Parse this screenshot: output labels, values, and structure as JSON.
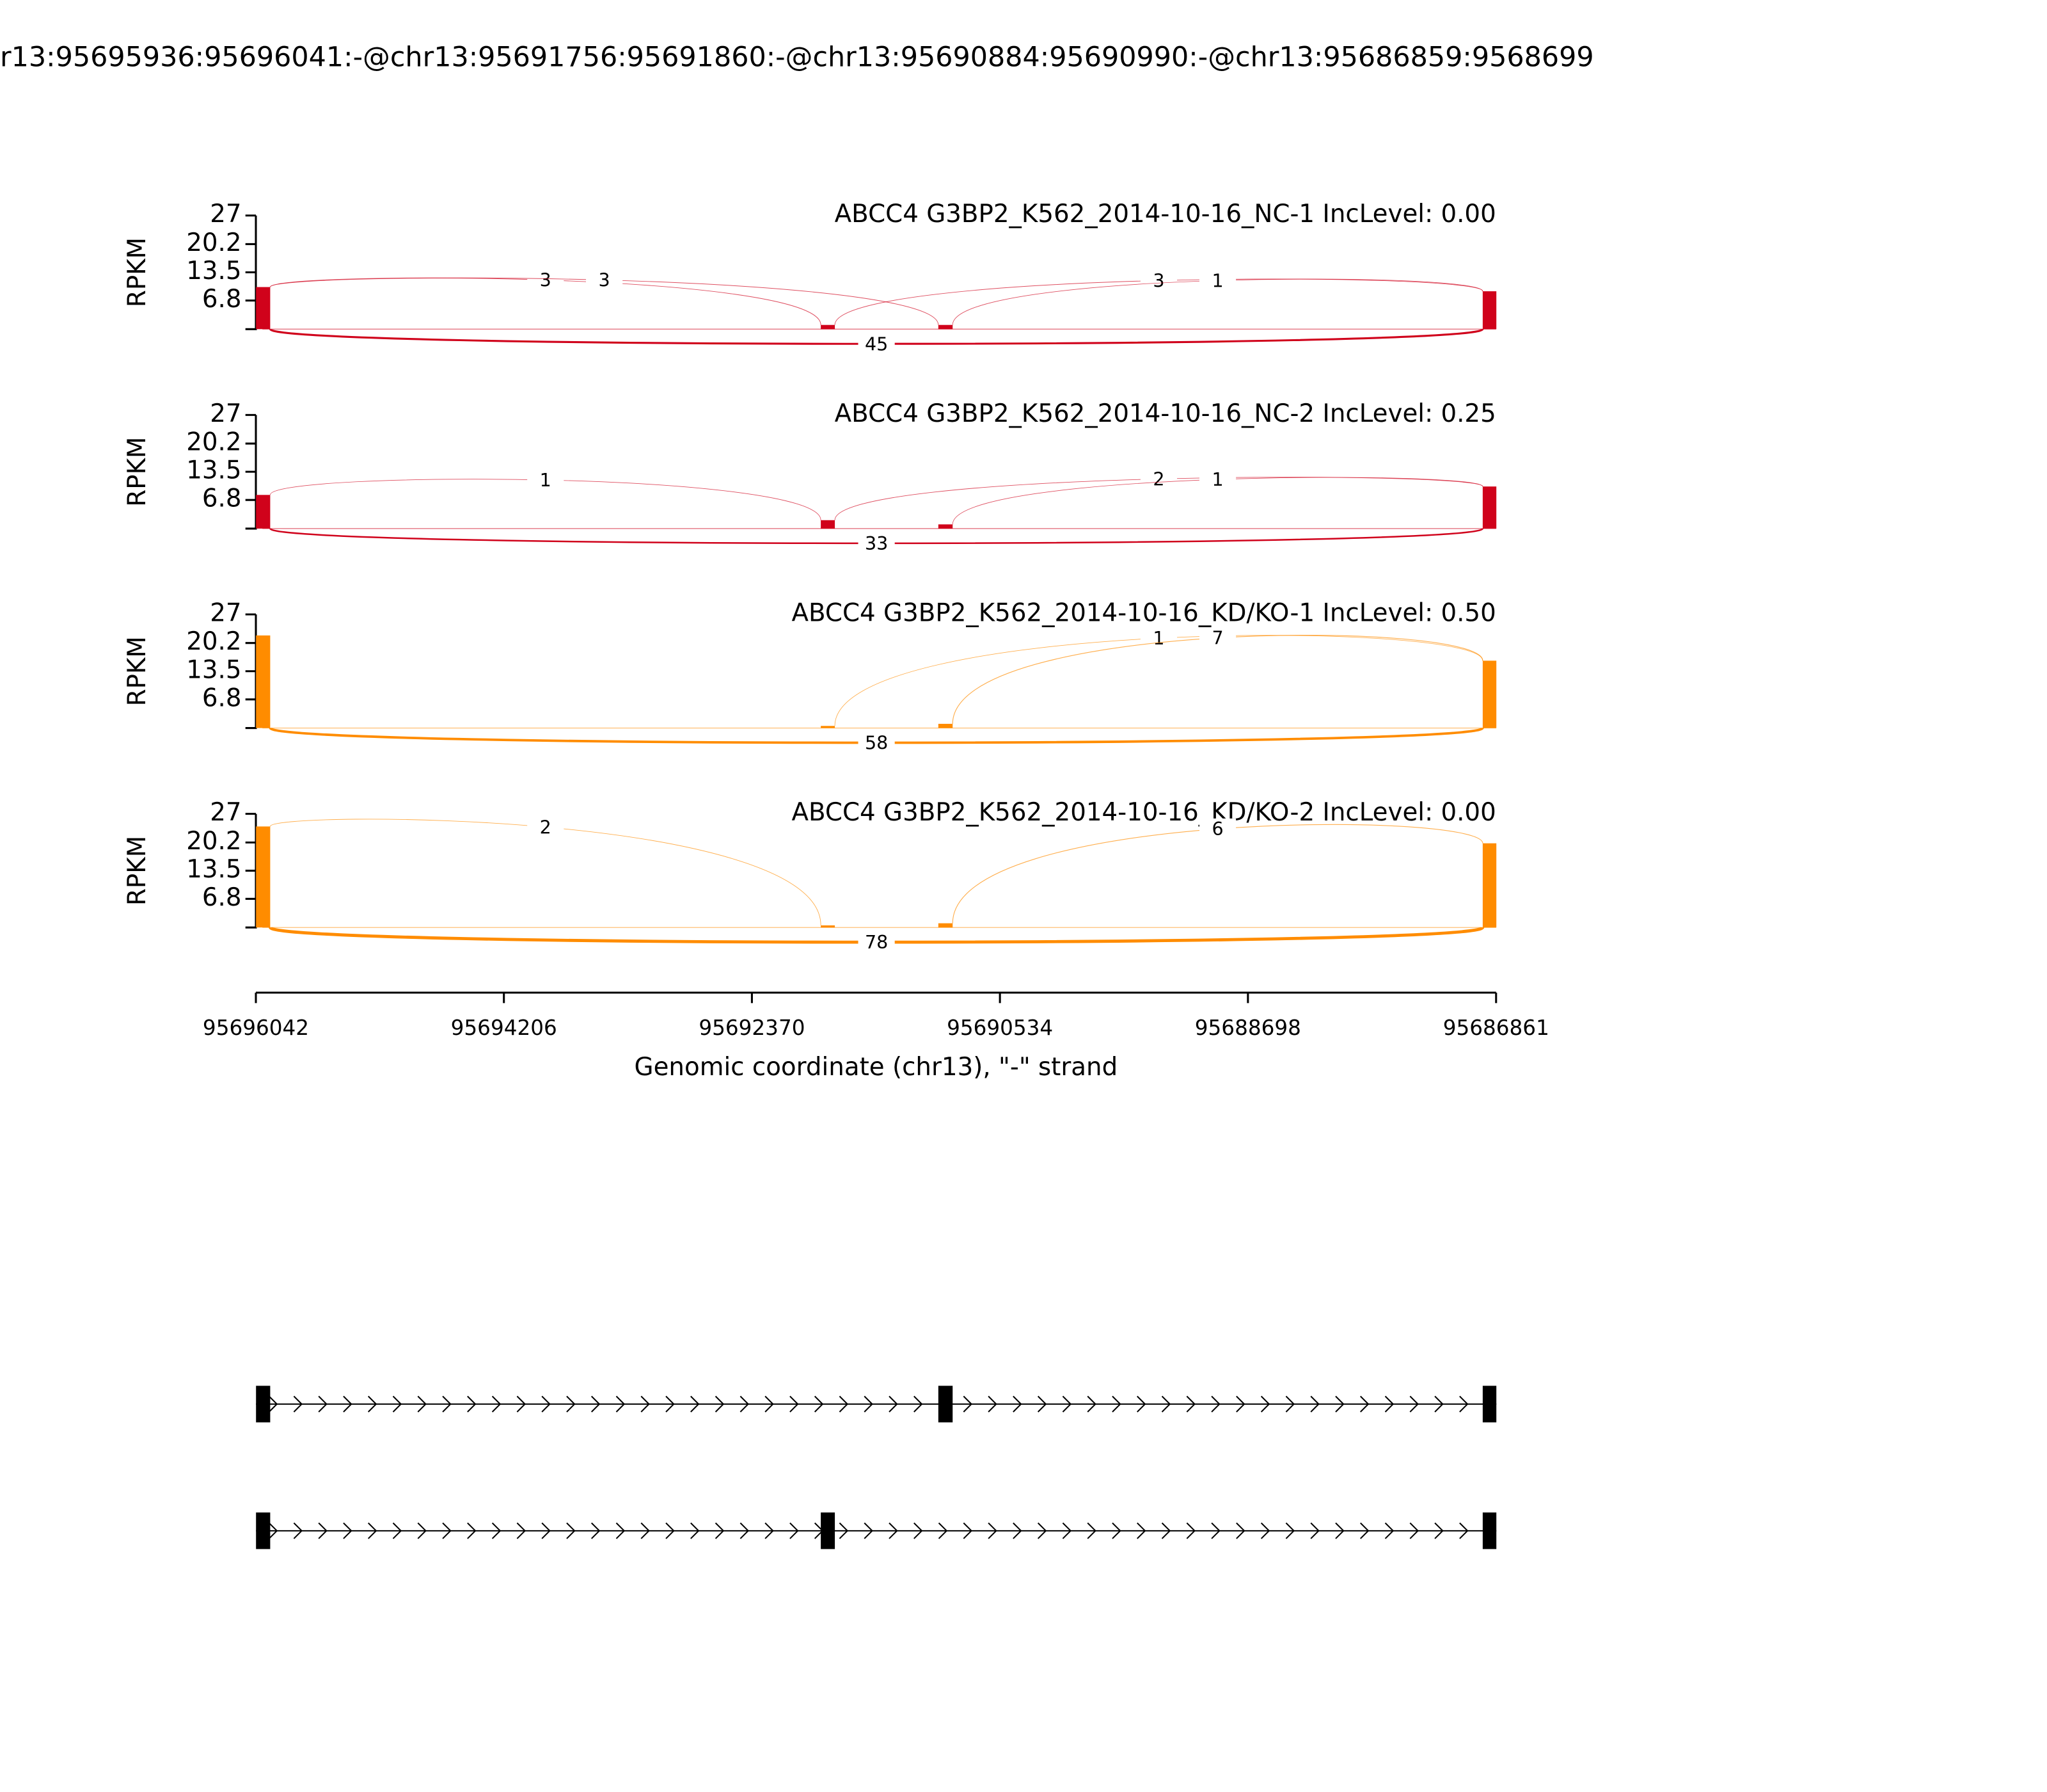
{
  "chart_data": {
    "type": "sashimi",
    "title": "r13:95695936:95696041:-@chr13:95691756:95691860:-@chr13:95690884:95690990:-@chr13:95686859:9568699",
    "xlabel": "Genomic coordinate (chr13), \"-\" strand",
    "ylabel": "RPKM",
    "xlim": [
      95696042,
      95686861
    ],
    "xticks": [
      95696042,
      95694206,
      95692370,
      95690534,
      95688698,
      95686861
    ],
    "ylim": [
      0,
      27
    ],
    "yticks": [
      6.8,
      13.5,
      20.2,
      27
    ],
    "exons": [
      [
        95696041,
        95695936
      ],
      [
        95691860,
        95691756
      ],
      [
        95690990,
        95690884
      ],
      [
        95686960,
        95686859
      ]
    ],
    "panels": [
      {
        "title": "ABCC4 G3BP2_K562_2014-10-16_NC-1 IncLevel: 0.00",
        "color": "#d0021b",
        "coverage": [
          10,
          1,
          1,
          9
        ],
        "junctions": [
          {
            "start": 95695936,
            "end": 95691860,
            "value": 3
          },
          {
            "start": 95695936,
            "end": 95690990,
            "value": 3
          },
          {
            "start": 95691756,
            "end": 95686960,
            "value": 3
          },
          {
            "start": 95690884,
            "end": 95686960,
            "value": 1
          },
          {
            "start": 95695936,
            "end": 95686960,
            "value": 45
          }
        ]
      },
      {
        "title": "ABCC4 G3BP2_K562_2014-10-16_NC-2 IncLevel: 0.25",
        "color": "#d0021b",
        "coverage": [
          8,
          2,
          1,
          10
        ],
        "junctions": [
          {
            "start": 95695936,
            "end": 95691860,
            "value": 1
          },
          {
            "start": 95691756,
            "end": 95686960,
            "value": 2
          },
          {
            "start": 95690884,
            "end": 95686960,
            "value": 1
          },
          {
            "start": 95695936,
            "end": 95686960,
            "value": 33
          }
        ]
      },
      {
        "title": "ABCC4 G3BP2_K562_2014-10-16_KD/KO-1 IncLevel: 0.50",
        "color": "#ff8c00",
        "coverage": [
          22,
          0.5,
          1,
          16
        ],
        "junctions": [
          {
            "start": 95691756,
            "end": 95686960,
            "value": 1
          },
          {
            "start": 95690884,
            "end": 95686960,
            "value": 7
          },
          {
            "start": 95695936,
            "end": 95686960,
            "value": 58
          }
        ]
      },
      {
        "title": "ABCC4 G3BP2_K562_2014-10-16_KD/KO-2 IncLevel: 0.00",
        "color": "#ff8c00",
        "coverage": [
          24,
          0.5,
          1,
          20
        ],
        "junctions": [
          {
            "start": 95695936,
            "end": 95691860,
            "value": 2
          },
          {
            "start": 95690884,
            "end": 95686960,
            "value": 6
          },
          {
            "start": 95695936,
            "end": 95686960,
            "value": 78
          }
        ]
      }
    ],
    "transcripts": [
      [
        [
          95696041,
          95695936
        ],
        [
          95690990,
          95690884
        ],
        [
          95686960,
          95686859
        ]
      ],
      [
        [
          95696041,
          95695936
        ],
        [
          95691860,
          95691756
        ],
        [
          95686960,
          95686859
        ]
      ]
    ]
  }
}
